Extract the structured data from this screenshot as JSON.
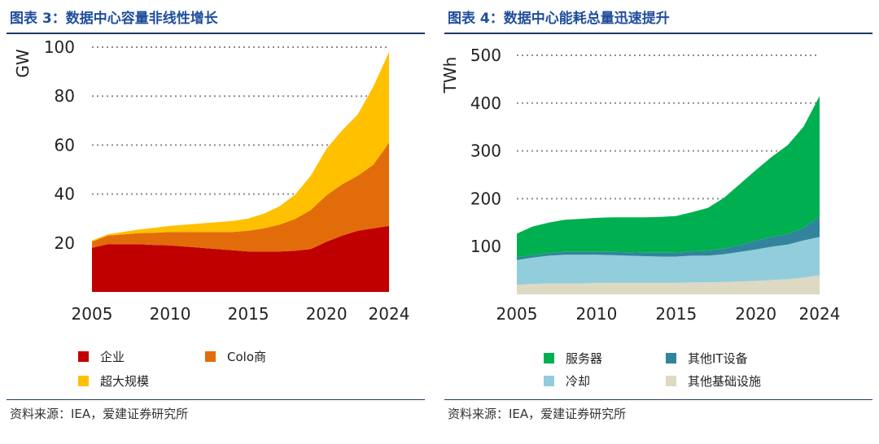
{
  "charts": [
    {
      "title": "图表 3：数据中心容量非线性增长",
      "source": "资料来源：IEA，爱建证券研究所",
      "legend": [
        {
          "label": "企业",
          "color": "#c00000"
        },
        {
          "label": "Colo商",
          "color": "#e36c0a"
        },
        {
          "label": "超大规模",
          "color": "#ffc000"
        }
      ]
    },
    {
      "title": "图表 4：数据中心能耗总量迅速提升",
      "source": "资料来源：IEA，爱建证券研究所",
      "legend": [
        {
          "label": "服务器",
          "color": "#00b050"
        },
        {
          "label": "其他IT设备",
          "color": "#31849b"
        },
        {
          "label": "冷却",
          "color": "#92cddc"
        },
        {
          "label": "其他基础设施",
          "color": "#ddd9c3"
        }
      ]
    }
  ],
  "chart_data": [
    {
      "type": "area",
      "stacked": true,
      "title": "图表 3：数据中心容量非线性增长",
      "ylabel": "GW",
      "xlabel": "",
      "x": [
        2005,
        2006,
        2007,
        2008,
        2009,
        2010,
        2011,
        2012,
        2013,
        2014,
        2015,
        2016,
        2017,
        2018,
        2019,
        2020,
        2021,
        2022,
        2023,
        2024
      ],
      "xticks": [
        2005,
        2010,
        2015,
        2020,
        2024
      ],
      "yticks": [
        20,
        40,
        60,
        80,
        100
      ],
      "ylim": [
        0,
        100
      ],
      "grid": "horizontal-dotted",
      "series": [
        {
          "name": "企业",
          "color": "#c00000",
          "values": [
            18,
            19.5,
            19.5,
            19.5,
            19.2,
            19,
            18.5,
            18,
            17.5,
            17,
            16.5,
            16.5,
            16.5,
            16.8,
            17.5,
            20.5,
            23,
            25,
            26,
            27
          ]
        },
        {
          "name": "Colo商",
          "color": "#e36c0a",
          "values": [
            2.5,
            3.5,
            4,
            4.5,
            5,
            5.5,
            6,
            6.5,
            7,
            7.5,
            8.5,
            9.5,
            11,
            13,
            16,
            19,
            21,
            22.5,
            26,
            34
          ]
        },
        {
          "name": "超大规模",
          "color": "#ffc000",
          "values": [
            0.5,
            0.5,
            1,
            1.5,
            2,
            2.5,
            3,
            3.5,
            4,
            4.5,
            5,
            6,
            7.5,
            10,
            14,
            19,
            22,
            25,
            32,
            37
          ]
        }
      ]
    },
    {
      "type": "area",
      "stacked": true,
      "title": "图表 4：数据中心能耗总量迅速提升",
      "ylabel": "TWh",
      "xlabel": "",
      "x": [
        2005,
        2006,
        2007,
        2008,
        2009,
        2010,
        2011,
        2012,
        2013,
        2014,
        2015,
        2016,
        2017,
        2018,
        2019,
        2020,
        2021,
        2022,
        2023,
        2024
      ],
      "xticks": [
        2005,
        2010,
        2015,
        2020,
        2024
      ],
      "yticks": [
        100,
        200,
        300,
        400,
        500
      ],
      "ylim": [
        0,
        500
      ],
      "grid": "horizontal-dotted",
      "series": [
        {
          "name": "其他基础设施",
          "color": "#ddd9c3",
          "values": [
            20,
            22,
            23,
            23,
            23,
            24,
            24,
            24,
            24,
            24,
            24,
            25,
            25,
            26,
            27,
            28,
            30,
            32,
            35,
            40
          ]
        },
        {
          "name": "冷却",
          "color": "#92cddc",
          "values": [
            52,
            55,
            58,
            60,
            60,
            59,
            58,
            57,
            56,
            55,
            55,
            56,
            56,
            58,
            62,
            66,
            70,
            72,
            78,
            80
          ]
        },
        {
          "name": "其他IT设备",
          "color": "#31849b",
          "values": [
            5,
            5,
            5,
            6,
            6,
            6,
            7,
            7,
            7,
            8,
            8,
            9,
            10,
            12,
            14,
            18,
            20,
            22,
            26,
            42
          ]
        },
        {
          "name": "服务器",
          "color": "#00b050",
          "values": [
            50,
            60,
            64,
            67,
            69,
            71,
            72,
            73,
            74,
            75,
            77,
            82,
            90,
            106,
            128,
            148,
            168,
            186,
            212,
            253
          ]
        }
      ]
    }
  ]
}
